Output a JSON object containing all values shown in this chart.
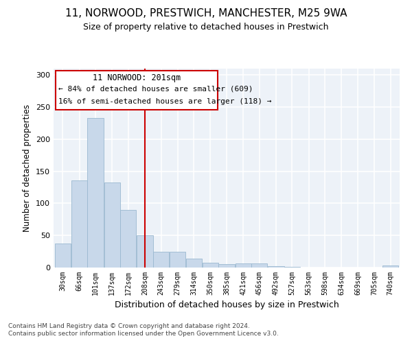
{
  "title1": "11, NORWOOD, PRESTWICH, MANCHESTER, M25 9WA",
  "title2": "Size of property relative to detached houses in Prestwich",
  "xlabel": "Distribution of detached houses by size in Prestwich",
  "ylabel": "Number of detached properties",
  "footer1": "Contains HM Land Registry data © Crown copyright and database right 2024.",
  "footer2": "Contains public sector information licensed under the Open Government Licence v3.0.",
  "bins": [
    30,
    66,
    101,
    137,
    172,
    208,
    243,
    279,
    314,
    350,
    385,
    421,
    456,
    492,
    527,
    563,
    598,
    634,
    669,
    705,
    740
  ],
  "values": [
    37,
    136,
    233,
    133,
    90,
    50,
    25,
    25,
    14,
    7,
    5,
    6,
    6,
    2,
    1,
    0,
    0,
    0,
    0,
    0,
    3
  ],
  "bar_color": "#c8d8ea",
  "bar_edge_color": "#9ab8d0",
  "vline_x": 208,
  "vline_color": "#cc0000",
  "annotation_line1": "11 NORWOOD: 201sqm",
  "annotation_line2": "← 84% of detached houses are smaller (609)",
  "annotation_line3": "16% of semi-detached houses are larger (118) →",
  "annotation_box_color": "#cc0000",
  "ylim": [
    0,
    310
  ],
  "yticks": [
    0,
    50,
    100,
    150,
    200,
    250,
    300
  ],
  "bg_color": "#edf2f8"
}
